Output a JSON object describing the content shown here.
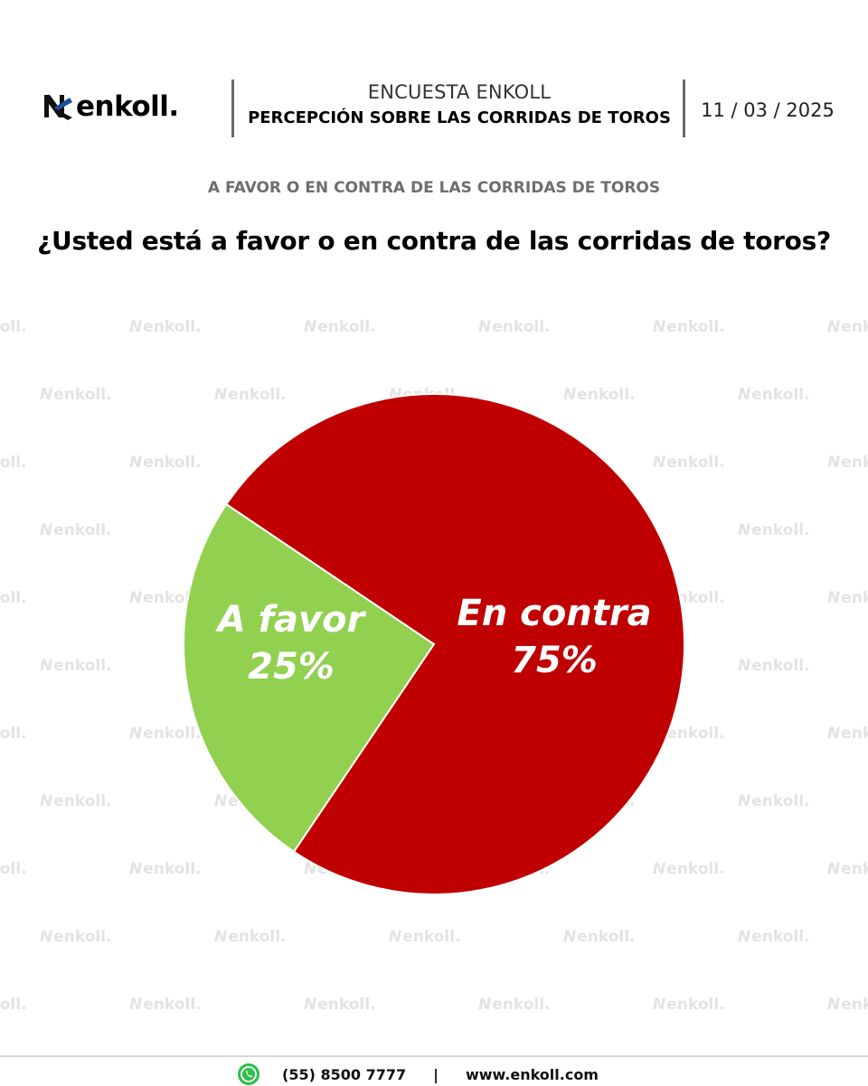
{
  "header": {
    "logo_text": "enkoll.",
    "survey_name": "ENCUESTA ENKOLL",
    "survey_topic": "PERCEPCIÓN SOBRE LAS CORRIDAS DE TOROS",
    "date": "11 / 03 / 2025"
  },
  "subtitle": "A FAVOR O EN CONTRA DE LAS CORRIDAS DE TOROS",
  "question": "¿Usted está a favor o en contra de las corridas de toros?",
  "watermark_text": "enkoll.",
  "chart_data": {
    "type": "pie",
    "title": "",
    "slices": [
      {
        "label": "A favor",
        "value": 25,
        "display": "25%",
        "color": "#92d050"
      },
      {
        "label": "En contra",
        "value": 75,
        "display": "75%",
        "color": "#c00000"
      }
    ],
    "legend": "none"
  },
  "footer": {
    "phone": "(55) 8500 7777",
    "separator": "|",
    "website": "www.enkoll.com"
  },
  "colors": {
    "brand_blue": "#1f4e9c",
    "favor": "#92d050",
    "contra": "#c00000"
  }
}
